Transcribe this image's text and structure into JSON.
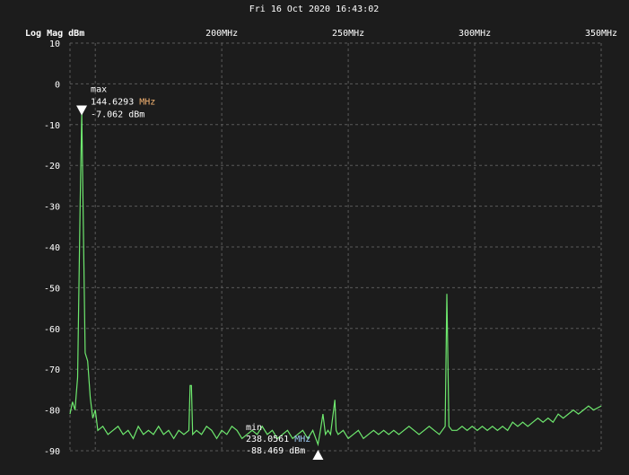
{
  "timestamp": "Fri 16 Oct 2020 16:43:02",
  "chart_data": {
    "type": "line",
    "title": "",
    "ylabel": "Log Mag dBm",
    "xlabel": "",
    "xlim": [
      140,
      350
    ],
    "ylim": [
      -90,
      10
    ],
    "grid": true,
    "x_ticks": [
      150,
      200,
      250,
      300,
      350
    ],
    "x_tick_labels": [
      "",
      "200MHz",
      "250MHz",
      "300MHz",
      "350MHz"
    ],
    "y_ticks": [
      10,
      0,
      -10,
      -20,
      -30,
      -40,
      -50,
      -60,
      -70,
      -80,
      -90
    ],
    "y_tick_labels": [
      "10",
      "0",
      "-10",
      "-20",
      "-30",
      "-40",
      "-50",
      "-60",
      "-70",
      "-80",
      "-90"
    ],
    "colors": {
      "background": "#1c1c1c",
      "trace": "#6ee86e",
      "grid": "#5a5a5a",
      "max_text": "#f4e6d0",
      "min_text": "#cfe6ff"
    },
    "series": [
      {
        "x": [
          140,
          141,
          142,
          143,
          144,
          144.63,
          145.3,
          146,
          147,
          148,
          149,
          150,
          151,
          153,
          155,
          157,
          159,
          161,
          163,
          165,
          167,
          169,
          171,
          173,
          175,
          177,
          179,
          181,
          183,
          185,
          187,
          187.5,
          188,
          188.5,
          190,
          192,
          194,
          196,
          198,
          200,
          202,
          204,
          206,
          208,
          210,
          212,
          214,
          216,
          218,
          220,
          222,
          224,
          226,
          228,
          230,
          232,
          234,
          236,
          238.06,
          239,
          240,
          241,
          242,
          243,
          244.7,
          245.2,
          246,
          248,
          250,
          252,
          254,
          256,
          258,
          260,
          262,
          264,
          266,
          268,
          270,
          272,
          274,
          276,
          278,
          280,
          282,
          284,
          286,
          288.3,
          289,
          289.8,
          291,
          293,
          295,
          297,
          299,
          301,
          303,
          305,
          307,
          309,
          311,
          313,
          315,
          317,
          319,
          321,
          323,
          325,
          327,
          329,
          331,
          333,
          335,
          337,
          339,
          341,
          343,
          345,
          347,
          350
        ],
        "y": [
          -81,
          -78,
          -80,
          -72,
          -30,
          -7.062,
          -35,
          -66,
          -68,
          -77,
          -82,
          -80,
          -85,
          -84,
          -86,
          -85,
          -84,
          -86,
          -85,
          -87,
          -84,
          -86,
          -85,
          -86,
          -84,
          -86,
          -85,
          -87,
          -85,
          -86,
          -85,
          -74,
          -74,
          -86,
          -85,
          -86,
          -84,
          -85,
          -87,
          -85,
          -86,
          -84,
          -85,
          -87,
          -86,
          -85,
          -86,
          -84,
          -86,
          -85,
          -87,
          -86,
          -85,
          -87,
          -86,
          -85,
          -87,
          -85,
          -88.469,
          -85,
          -81,
          -86,
          -85,
          -86,
          -77.5,
          -85,
          -86,
          -85,
          -87,
          -86,
          -85,
          -87,
          -86,
          -85,
          -86,
          -85,
          -86,
          -85,
          -86,
          -85,
          -84,
          -85,
          -86,
          -85,
          -84,
          -85,
          -86,
          -84,
          -51.5,
          -84,
          -85,
          -85,
          -84,
          -85,
          -84,
          -85,
          -84,
          -85,
          -84,
          -85,
          -84,
          -85,
          -83,
          -84,
          -83,
          -84,
          -83,
          -82,
          -83,
          -82,
          -83,
          -81,
          -82,
          -81,
          -80,
          -81,
          -80,
          -79,
          -80,
          -79
        ]
      }
    ],
    "markers": [
      {
        "label": "max",
        "freq": "144.6293",
        "freq_unit": "MHz",
        "level": "-7.062 dBm",
        "x": 144.6293,
        "y": -7.062
      },
      {
        "label": "min",
        "freq": "238.0561",
        "freq_unit": "MHz",
        "level": "-88.469 dBm",
        "x": 238.0561,
        "y": -88.469
      }
    ]
  }
}
